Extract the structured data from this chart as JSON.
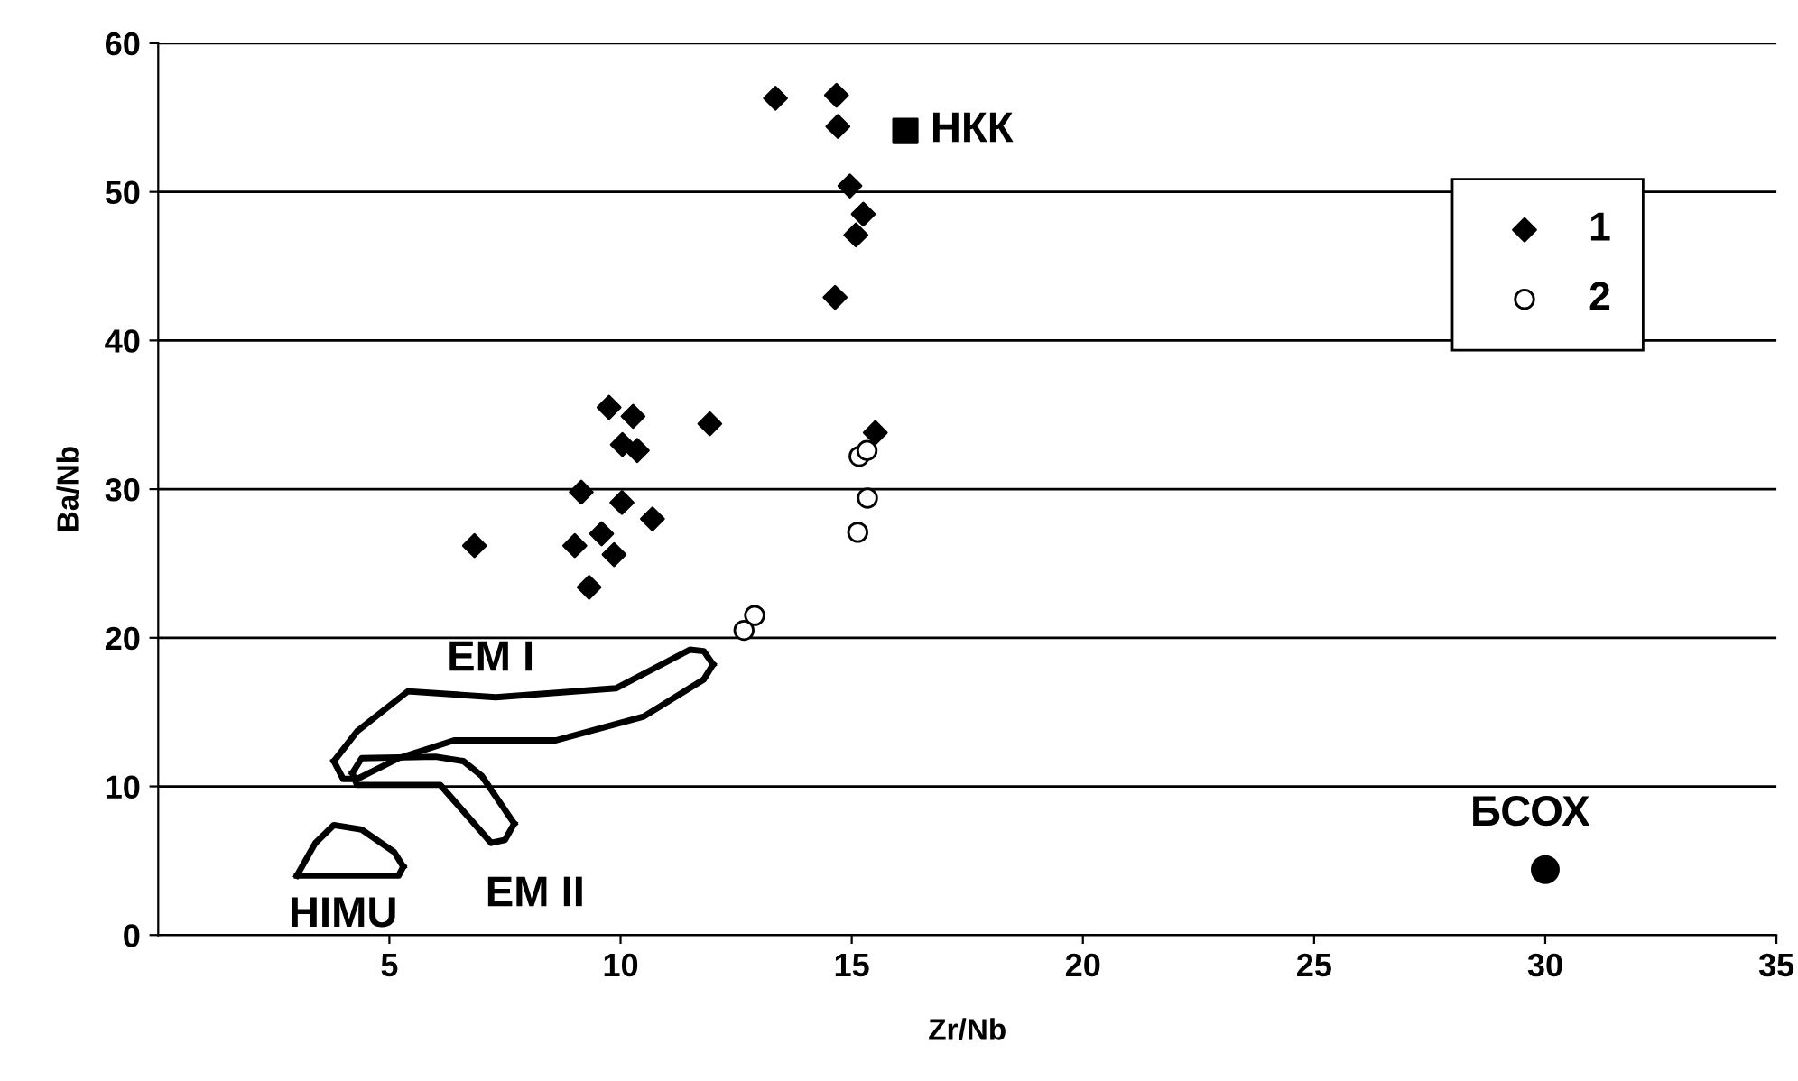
{
  "chart_data": {
    "type": "scatter",
    "xlabel": "Zr/Nb",
    "ylabel": "Ba/Nb",
    "xlim": [
      0,
      35
    ],
    "xticks": [
      5,
      10,
      15,
      20,
      25,
      30,
      35
    ],
    "ylim": [
      0,
      60
    ],
    "yticks": [
      0,
      10,
      20,
      30,
      40,
      50,
      60
    ],
    "grid": "y",
    "legend": "top right",
    "series": [
      {
        "name": "1",
        "marker": "diamond",
        "color": "#000000",
        "x": [
          9.75,
          10.27,
          11.93,
          10.04,
          10.36,
          15.51,
          9.15,
          10.03,
          10.69,
          9.59,
          9.01,
          9.86,
          9.32,
          6.84,
          13.35,
          14.67,
          14.7,
          14.96,
          15.25,
          15.09,
          14.64
        ],
        "values": [
          35.5,
          34.9,
          34.4,
          33.0,
          32.6,
          33.8,
          29.8,
          29.1,
          28.0,
          27.0,
          26.2,
          25.6,
          23.4,
          26.2,
          56.3,
          56.5,
          54.4,
          50.4,
          48.5,
          47.1,
          42.9
        ]
      },
      {
        "name": "2",
        "marker": "circle",
        "color": "#ffffff",
        "x": [
          15.16,
          15.33,
          15.34,
          15.13,
          12.9,
          12.67
        ],
        "values": [
          32.2,
          32.6,
          29.4,
          27.1,
          21.5,
          20.5
        ]
      },
      {
        "marker": "square",
        "color": "#000000",
        "x": [
          16.16
        ],
        "values": [
          54.1
        ]
      },
      {
        "marker": "circle",
        "color": "#000000",
        "x": [
          30.0
        ],
        "values": [
          4.4
        ]
      },
      {
        "type": "line",
        "color": "#000000",
        "x": [
          3.8,
          4.3,
          5.4,
          7.3,
          9.9,
          11.5,
          11.8,
          12.0
        ],
        "values": [
          11.7,
          13.7,
          16.4,
          16.0,
          16.6,
          19.2,
          19.1,
          18.2
        ]
      },
      {
        "type": "line",
        "color": "#000000",
        "x": [
          3.8,
          4.0,
          4.3,
          5.2,
          6.4,
          8.6,
          10.5,
          11.8,
          12.0
        ],
        "values": [
          11.7,
          10.5,
          10.5,
          11.9,
          13.1,
          13.1,
          14.7,
          17.2,
          18.2
        ]
      },
      {
        "type": "line",
        "color": "#000000",
        "x": [
          4.2,
          4.4,
          6.0,
          6.6,
          7.0,
          7.7
        ],
        "values": [
          10.9,
          11.9,
          12.0,
          11.7,
          10.7,
          7.5
        ]
      },
      {
        "type": "line",
        "color": "#000000",
        "x": [
          4.2,
          4.3,
          6.1,
          7.2,
          7.5,
          7.7
        ],
        "values": [
          10.9,
          10.1,
          10.1,
          6.2,
          6.4,
          7.5
        ]
      },
      {
        "type": "line",
        "color": "#000000",
        "x": [
          3.0,
          3.4,
          3.8,
          4.4,
          5.1,
          5.3
        ],
        "values": [
          4.0,
          6.2,
          7.4,
          7.1,
          5.6,
          4.6
        ]
      },
      {
        "type": "line",
        "color": "#000000",
        "x": [
          3.0,
          5.2,
          5.3
        ],
        "values": [
          4.0,
          4.0,
          4.6
        ]
      }
    ],
    "annotations": [
      {
        "text": "НКК",
        "x": 16.16,
        "y": 54.1
      },
      {
        "text": "БСОХ",
        "x": 30.0,
        "y": 4.4
      },
      {
        "text": "EM I",
        "x": 7.3,
        "y": 16.0
      },
      {
        "text": "EM II",
        "x": 7.5,
        "y": 6.4
      },
      {
        "text": "HIMU",
        "x": 4.0,
        "y": 4.0
      }
    ]
  }
}
